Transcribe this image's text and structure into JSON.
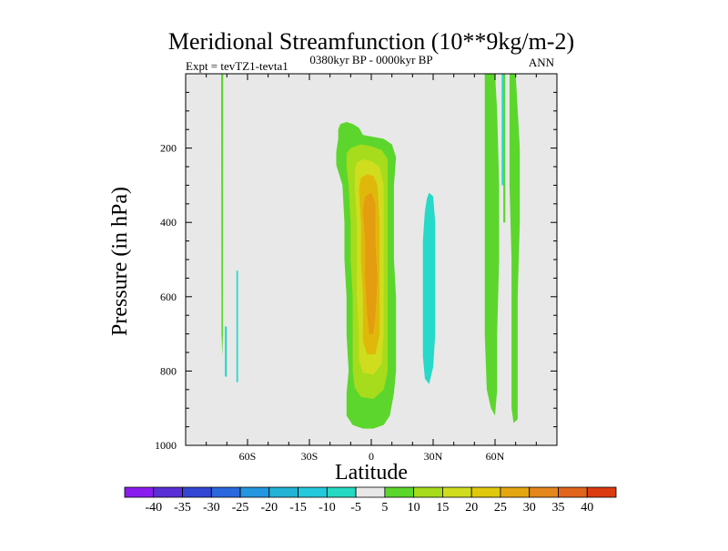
{
  "chart_data": {
    "type": "contour",
    "title": "Meridional Streamfunction (10**9kg/m-2)",
    "left_subtitle": "Expt = tevTZ1-tevta1",
    "center_subtitle": "0380kyr BP - 0000kyr BP",
    "right_subtitle": "ANN",
    "xlabel": "Latitude",
    "ylabel": "Pressure (in hPa)",
    "xlim": [
      -90,
      90
    ],
    "ylim": [
      1000,
      0
    ],
    "x_ticks": [
      {
        "value": -60,
        "label": "60S"
      },
      {
        "value": -30,
        "label": "30S"
      },
      {
        "value": 0,
        "label": "0"
      },
      {
        "value": 30,
        "label": "30N"
      },
      {
        "value": 60,
        "label": "60N"
      }
    ],
    "y_ticks": [
      {
        "value": 200,
        "label": "200"
      },
      {
        "value": 400,
        "label": "400"
      },
      {
        "value": 600,
        "label": "600"
      },
      {
        "value": 800,
        "label": "800"
      },
      {
        "value": 1000,
        "label": "1000"
      }
    ],
    "background_level": "-5 to 5",
    "contour_regions": [
      {
        "name": "nh-hadley-positive-lobe",
        "level": 5,
        "color": "#5cd62c",
        "outline": [
          [
            -15,
            135
          ],
          [
            -12,
            130
          ],
          [
            -9,
            135
          ],
          [
            -6,
            145
          ],
          [
            -4,
            165
          ],
          [
            6,
            175
          ],
          [
            10,
            190
          ],
          [
            12,
            225
          ],
          [
            11,
            300
          ],
          [
            11,
            400
          ],
          [
            11,
            500
          ],
          [
            12,
            600
          ],
          [
            12,
            700
          ],
          [
            12,
            800
          ],
          [
            11,
            860
          ],
          [
            9,
            920
          ],
          [
            6,
            945
          ],
          [
            1,
            955
          ],
          [
            -4,
            955
          ],
          [
            -9,
            945
          ],
          [
            -12,
            920
          ],
          [
            -12,
            860
          ],
          [
            -11,
            800
          ],
          [
            -12,
            700
          ],
          [
            -12,
            600
          ],
          [
            -13,
            500
          ],
          [
            -13,
            400
          ],
          [
            -14,
            300
          ],
          [
            -17,
            245
          ],
          [
            -17,
            210
          ],
          [
            -16,
            175
          ],
          [
            -16,
            150
          ]
        ]
      },
      {
        "name": "nh-hadley-10",
        "level": 10,
        "color": "#a6dc1c",
        "outline": [
          [
            -10,
            200
          ],
          [
            -5,
            190
          ],
          [
            0,
            195
          ],
          [
            5,
            205
          ],
          [
            8,
            230
          ],
          [
            8,
            300
          ],
          [
            8,
            400
          ],
          [
            8,
            500
          ],
          [
            8,
            600
          ],
          [
            8,
            700
          ],
          [
            8,
            800
          ],
          [
            6,
            850
          ],
          [
            1,
            875
          ],
          [
            -5,
            870
          ],
          [
            -8,
            845
          ],
          [
            -9,
            800
          ],
          [
            -9,
            700
          ],
          [
            -9,
            600
          ],
          [
            -10,
            500
          ],
          [
            -10,
            400
          ],
          [
            -11,
            300
          ],
          [
            -12,
            250
          ],
          [
            -12,
            215
          ]
        ]
      },
      {
        "name": "nh-hadley-15",
        "level": 15,
        "color": "#d0dc1e",
        "outline": [
          [
            -7,
            240
          ],
          [
            -4,
            230
          ],
          [
            0,
            235
          ],
          [
            4,
            250
          ],
          [
            6,
            300
          ],
          [
            6,
            400
          ],
          [
            6,
            500
          ],
          [
            6,
            600
          ],
          [
            6,
            700
          ],
          [
            5,
            780
          ],
          [
            1,
            810
          ],
          [
            -4,
            805
          ],
          [
            -6,
            770
          ],
          [
            -6,
            700
          ],
          [
            -7,
            600
          ],
          [
            -7,
            500
          ],
          [
            -7,
            400
          ],
          [
            -8,
            300
          ],
          [
            -8,
            260
          ]
        ]
      },
      {
        "name": "nh-hadley-20",
        "level": 20,
        "color": "#e0b80c",
        "outline": [
          [
            -5,
            280
          ],
          [
            -2,
            270
          ],
          [
            1,
            275
          ],
          [
            3,
            300
          ],
          [
            4,
            400
          ],
          [
            4,
            500
          ],
          [
            4,
            600
          ],
          [
            4,
            700
          ],
          [
            2,
            755
          ],
          [
            -2,
            755
          ],
          [
            -4,
            720
          ],
          [
            -4,
            600
          ],
          [
            -5,
            500
          ],
          [
            -5,
            400
          ],
          [
            -6,
            310
          ]
        ]
      },
      {
        "name": "nh-hadley-25",
        "level": 25,
        "color": "#e49c10",
        "outline": [
          [
            -3,
            330
          ],
          [
            0,
            320
          ],
          [
            2,
            350
          ],
          [
            2,
            450
          ],
          [
            3,
            550
          ],
          [
            2,
            650
          ],
          [
            1,
            700
          ],
          [
            -1,
            700
          ],
          [
            -2,
            650
          ],
          [
            -3,
            550
          ],
          [
            -3,
            450
          ],
          [
            -4,
            370
          ]
        ]
      },
      {
        "name": "subtropical-negative-cell",
        "level": -5,
        "color": "#26d9c8",
        "outline": [
          [
            28,
            320
          ],
          [
            30,
            330
          ],
          [
            31,
            400
          ],
          [
            31,
            500
          ],
          [
            31,
            600
          ],
          [
            31,
            700
          ],
          [
            30,
            790
          ],
          [
            28,
            835
          ],
          [
            26,
            820
          ],
          [
            25,
            760
          ],
          [
            25,
            650
          ],
          [
            25,
            550
          ],
          [
            25,
            450
          ],
          [
            26,
            370
          ],
          [
            27,
            335
          ]
        ]
      },
      {
        "name": "nh-high-lat-band-1",
        "level": 5,
        "color": "#5cd62c",
        "outline": [
          [
            55,
            0
          ],
          [
            60,
            0
          ],
          [
            61,
            100
          ],
          [
            62,
            300
          ],
          [
            62,
            500
          ],
          [
            61,
            700
          ],
          [
            61,
            850
          ],
          [
            60,
            920
          ],
          [
            58,
            900
          ],
          [
            56,
            850
          ],
          [
            55,
            700
          ],
          [
            55,
            500
          ],
          [
            55,
            300
          ],
          [
            55,
            100
          ]
        ]
      },
      {
        "name": "nh-high-lat-band-2",
        "level": 5,
        "color": "#5cd62c",
        "outline": [
          [
            67,
            0
          ],
          [
            70,
            0
          ],
          [
            72,
            200
          ],
          [
            72,
            400
          ],
          [
            71,
            600
          ],
          [
            71,
            800
          ],
          [
            71,
            930
          ],
          [
            69,
            940
          ],
          [
            68,
            900
          ],
          [
            68,
            700
          ],
          [
            68,
            500
          ],
          [
            67,
            300
          ],
          [
            67,
            100
          ]
        ]
      },
      {
        "name": "nh-high-lat-thin-line",
        "level": 5,
        "color": "#5cd62c",
        "outline": [
          [
            64,
            0
          ],
          [
            65,
            0
          ],
          [
            65,
            400
          ],
          [
            64,
            400
          ]
        ]
      },
      {
        "name": "nh-high-lat-negative-strip",
        "level": -5,
        "color": "#26d9c8",
        "outline": [
          [
            63.2,
            0
          ],
          [
            64.2,
            0
          ],
          [
            64.2,
            300
          ],
          [
            63.2,
            300
          ]
        ]
      },
      {
        "name": "sh-high-lat-positive-line",
        "level": 5,
        "color": "#5cd62c",
        "outline": [
          [
            -72.8,
            0
          ],
          [
            -71.8,
            0
          ],
          [
            -71.9,
            700
          ],
          [
            -72.2,
            760
          ],
          [
            -72.6,
            700
          ]
        ]
      },
      {
        "name": "sh-high-lat-negative-strip-1",
        "level": -5,
        "color": "#26d9c8",
        "outline": [
          [
            -71.0,
            680
          ],
          [
            -70.0,
            680
          ],
          [
            -70.0,
            815
          ],
          [
            -71.0,
            815
          ]
        ]
      },
      {
        "name": "sh-high-lat-negative-strip-2",
        "level": -5,
        "color": "#26d9c8",
        "outline": [
          [
            -65.4,
            530
          ],
          [
            -64.6,
            530
          ],
          [
            -64.6,
            830
          ],
          [
            -65.4,
            830
          ]
        ]
      }
    ],
    "colorbar": {
      "levels": [
        "-40",
        "-35",
        "-30",
        "-25",
        "-20",
        "-15",
        "-10",
        "-5",
        "5",
        "10",
        "15",
        "20",
        "25",
        "30",
        "35",
        "40"
      ],
      "colors": [
        "#8a1cf0",
        "#5b2fd6",
        "#3346d3",
        "#2b68dd",
        "#2596e0",
        "#22b3d6",
        "#24c8dc",
        "#25d9c2",
        "#e8e8e8",
        "#5cd62c",
        "#a6dc1c",
        "#d0dc1e",
        "#e0c80c",
        "#e4a610",
        "#e4861c",
        "#e0641c",
        "#dc3a10"
      ]
    }
  }
}
